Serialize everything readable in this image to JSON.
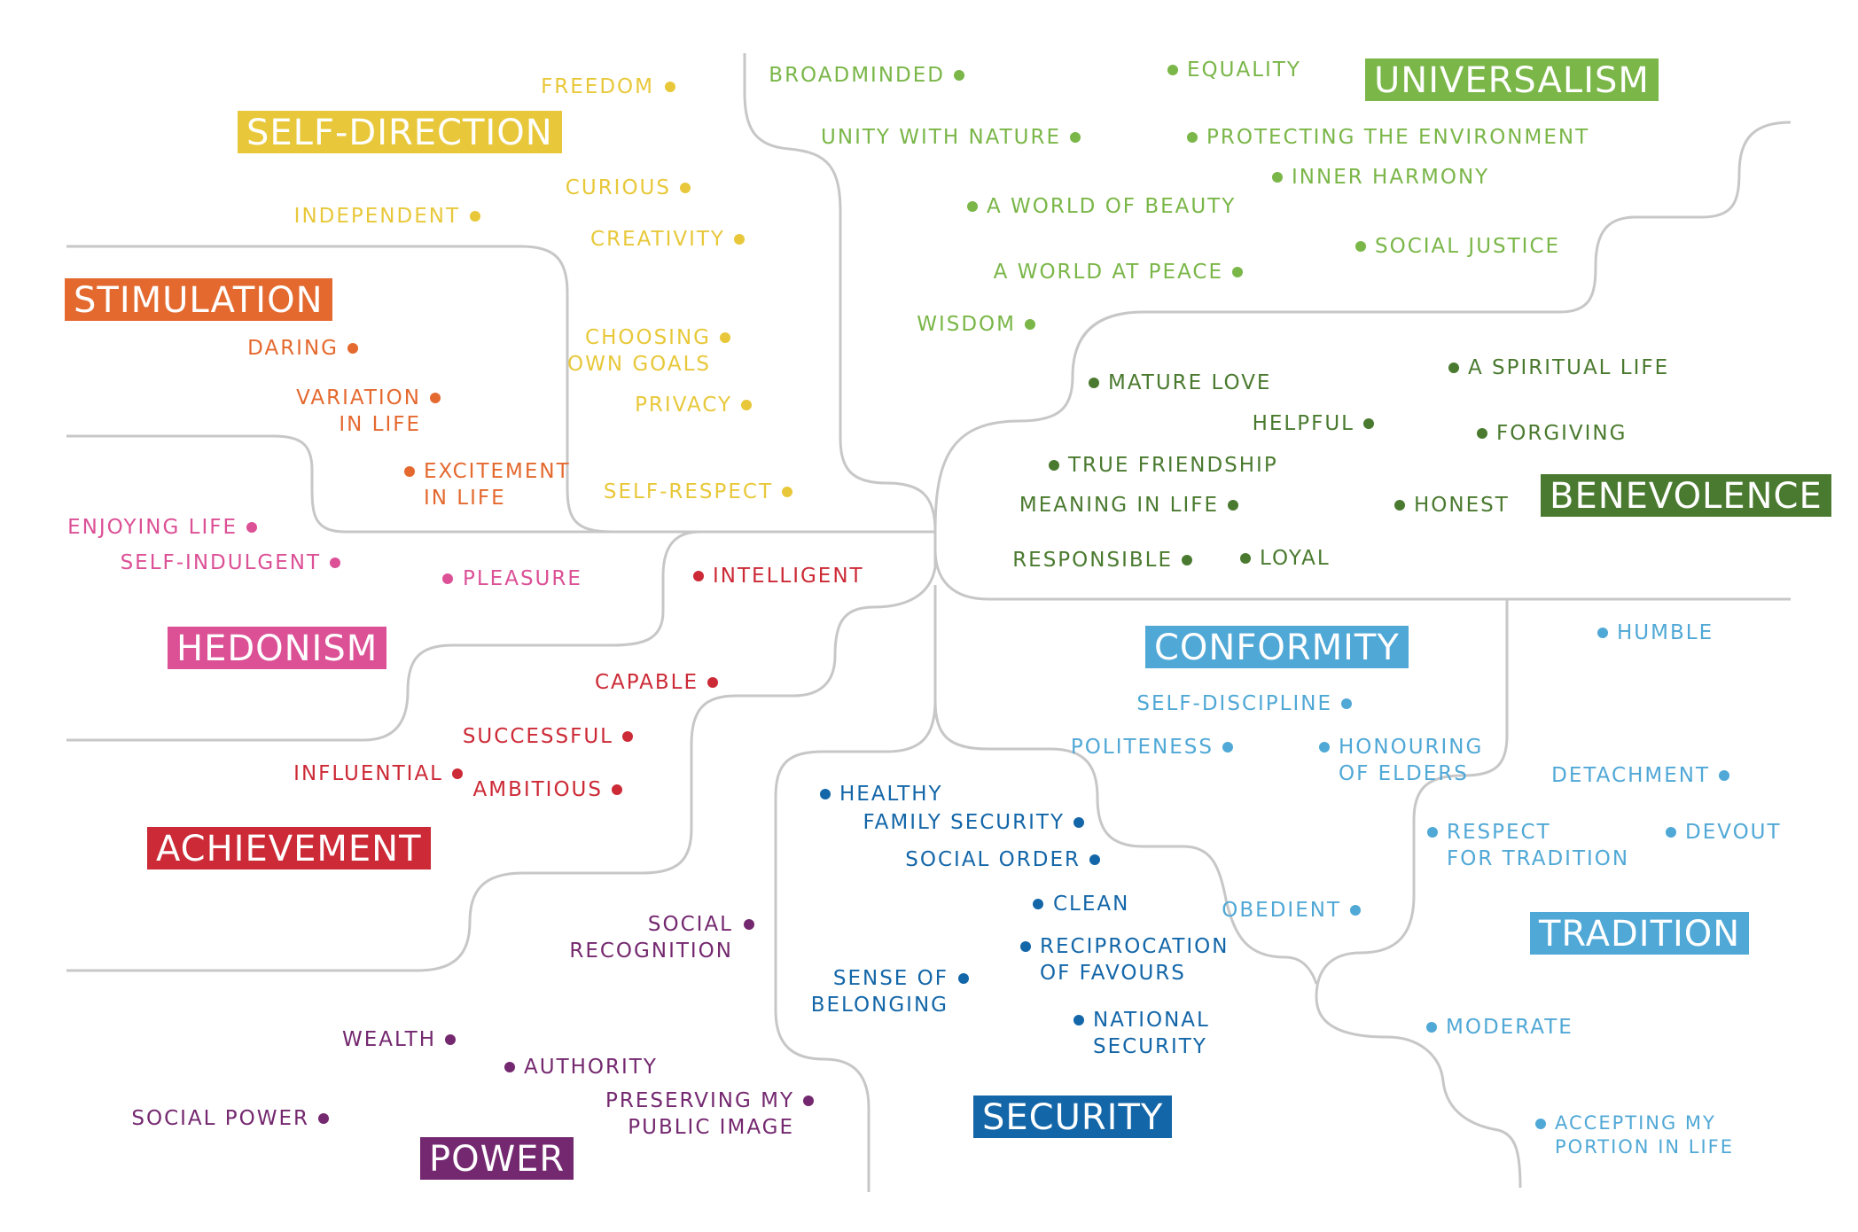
{
  "colors": {
    "self_direction": "#e8c83a",
    "stimulation": "#e4692f",
    "hedonism": "#dc5096",
    "achievement": "#cc2a36",
    "power": "#74286f",
    "security": "#1366a8",
    "conformity": "#50a8d6",
    "tradition": "#50a8d6",
    "benevolence": "#4a7a2f",
    "universalism": "#7ab648",
    "line": "#c7c7c7"
  },
  "categories": {
    "universalism": "UNIVERSALISM",
    "self_direction": "SELF-DIRECTION",
    "stimulation": "STIMULATION",
    "hedonism": "HEDONISM",
    "achievement": "ACHIEVEMENT",
    "power": "POWER",
    "security": "SECURITY",
    "conformity": "CONFORMITY",
    "tradition": "TRADITION",
    "benevolence": "BENEVOLENCE"
  },
  "values": {
    "freedom": "FREEDOM",
    "curious": "CURIOUS",
    "independent": "INDEPENDENT",
    "creativity": "CREATIVITY",
    "choosing_own_goals": "CHOOSING\nOWN GOALS",
    "privacy": "PRIVACY",
    "self_respect": "SELF-RESPECT",
    "daring": "DARING",
    "variation_in_life": "VARIATION\nIN LIFE",
    "excitement_in_life": "EXCITEMENT\nIN LIFE",
    "enjoying_life": "ENJOYING LIFE",
    "self_indulgent": "SELF-INDULGENT",
    "pleasure": "PLEASURE",
    "intelligent": "INTELLIGENT",
    "capable": "CAPABLE",
    "successful": "SUCCESSFUL",
    "influential": "INFLUENTIAL",
    "ambitious": "AMBITIOUS",
    "social_recognition": "SOCIAL\nRECOGNITION",
    "wealth": "WEALTH",
    "authority": "AUTHORITY",
    "preserving_public_image": "PRESERVING MY\nPUBLIC IMAGE",
    "social_power": "SOCIAL POWER",
    "broadminded": "BROADMINDED",
    "equality": "EQUALITY",
    "unity_with_nature": "UNITY WITH NATURE",
    "protecting_environment": "PROTECTING THE ENVIRONMENT",
    "inner_harmony": "INNER HARMONY",
    "world_of_beauty": "A WORLD OF BEAUTY",
    "social_justice": "SOCIAL JUSTICE",
    "world_at_peace": "A WORLD AT PEACE",
    "wisdom": "WISDOM",
    "mature_love": "MATURE LOVE",
    "spiritual_life": "A SPIRITUAL LIFE",
    "helpful": "HELPFUL",
    "forgiving": "FORGIVING",
    "true_friendship": "TRUE FRIENDSHIP",
    "meaning_in_life": "MEANING IN LIFE",
    "honest": "HONEST",
    "responsible": "RESPONSIBLE",
    "loyal": "LOYAL",
    "self_discipline": "SELF-DISCIPLINE",
    "politeness": "POLITENESS",
    "honouring_elders": "HONOURING\nOF ELDERS",
    "humble": "HUMBLE",
    "detachment": "DETACHMENT",
    "respect_tradition": "RESPECT\nFOR TRADITION",
    "devout": "DEVOUT",
    "obedient": "OBEDIENT",
    "healthy": "HEALTHY",
    "family_security": "FAMILY SECURITY",
    "social_order": "SOCIAL ORDER",
    "clean": "CLEAN",
    "reciprocation_of_favours": "RECIPROCATION\nOF FAVOURS",
    "sense_of_belonging": "SENSE OF\nBELONGING",
    "national_security": "NATIONAL\nSECURITY",
    "moderate": "MODERATE",
    "accepting_portion": "ACCEPTING MY\nPORTION IN LIFE"
  }
}
